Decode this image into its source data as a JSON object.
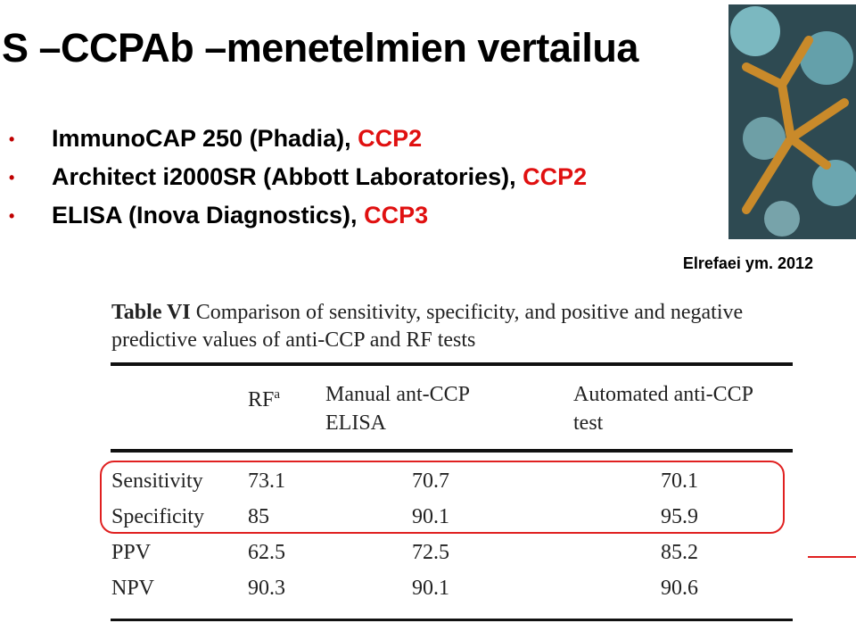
{
  "title": "S –CCPAb –menetelmien vertailua",
  "bullets": [
    {
      "text": "ImmunoCAP 250 (Phadia),",
      "highlight": "CCP2"
    },
    {
      "text": "Architect i2000SR (Abbott Laboratories),",
      "highlight": "CCP2"
    },
    {
      "text": "ELISA (Inova Diagnostics),",
      "highlight": "CCP3"
    }
  ],
  "citation": "Elrefaei ym.  2012",
  "table": {
    "label": "Table VI",
    "caption": "Comparison of sensitivity, specificity, and positive and negative predictive values of anti-CCP and RF tests",
    "header": {
      "rf": "RF",
      "rf_note": "a",
      "manual": "Manual ant-CCP ELISA",
      "automated": "Automated anti-CCP test"
    },
    "rows": [
      [
        "Sensitivity",
        "73.1",
        "70.7",
        "70.1"
      ],
      [
        "Specificity",
        "85",
        "90.1",
        "95.9"
      ],
      [
        "PPV",
        "62.5",
        "72.5",
        "85.2"
      ],
      [
        "NPV",
        "90.3",
        "90.1",
        "90.6"
      ]
    ]
  }
}
